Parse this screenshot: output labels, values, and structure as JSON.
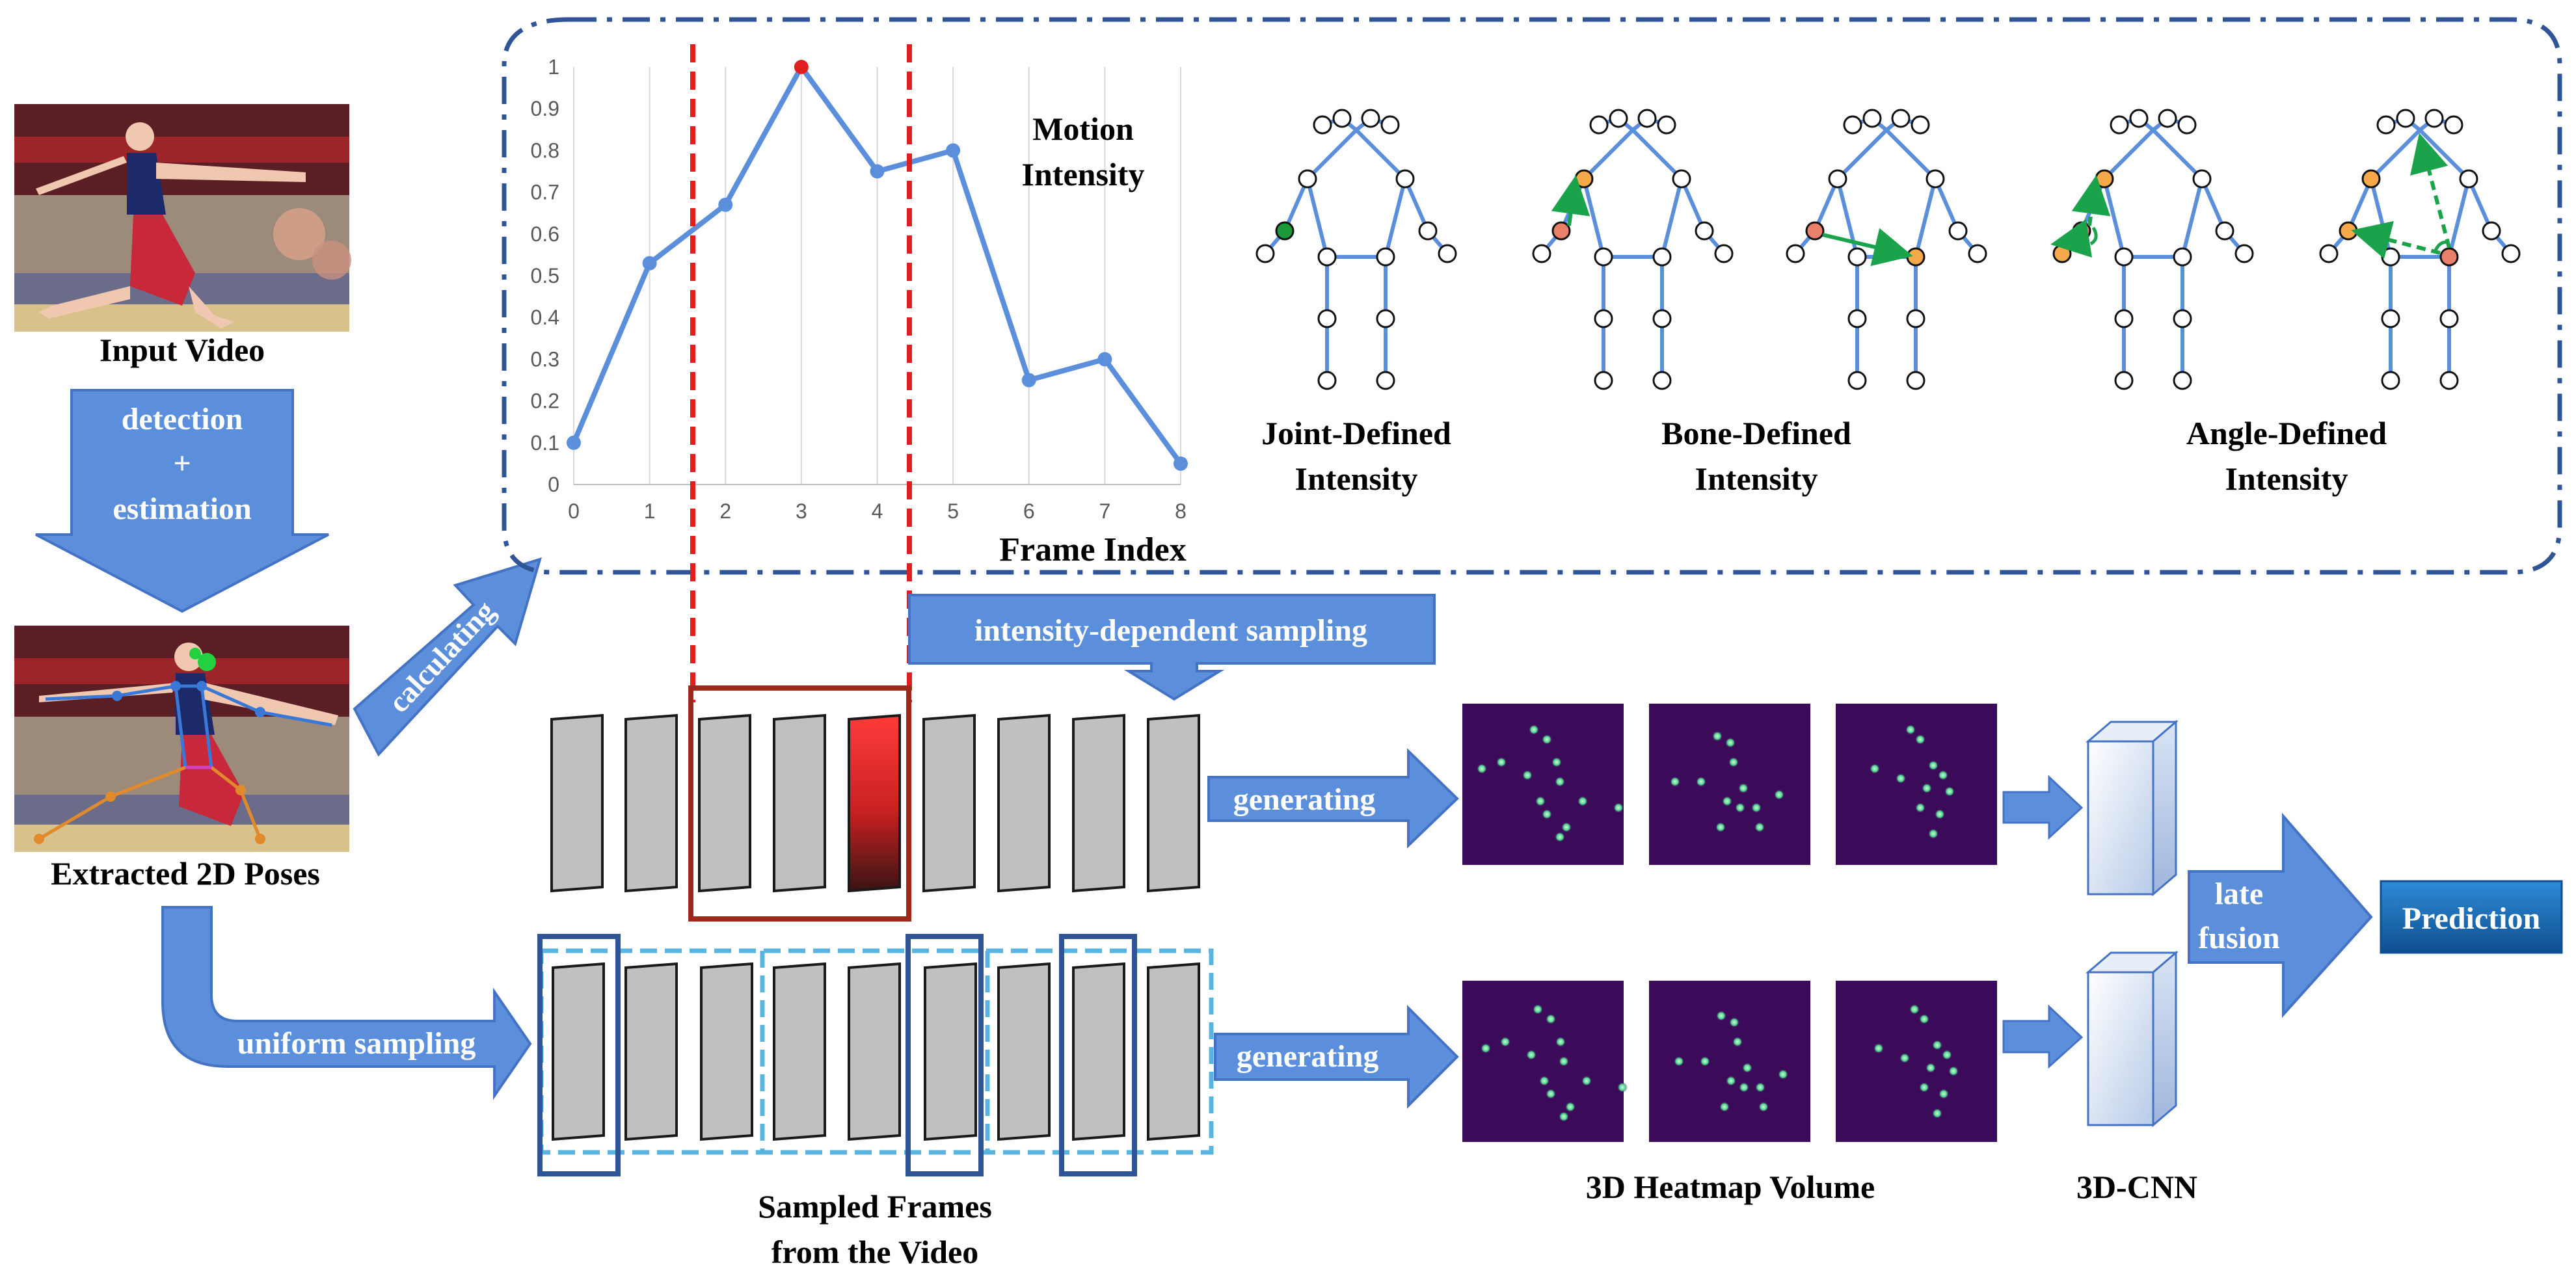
{
  "labels": {
    "input_video": "Input Video",
    "detection_line1": "detection",
    "detection_line2": "+",
    "detection_line3": "estimation",
    "extracted_poses": "Extracted 2D Poses",
    "calculating": "calculating",
    "uniform_sampling": "uniform sampling",
    "intensity_sampling": "intensity-dependent sampling",
    "generating_top": "generating",
    "generating_bottom": "generating",
    "sampled_frames_line1": "Sampled Frames",
    "sampled_frames_line2": "from the Video",
    "heatmap_volume": "3D Heatmap Volume",
    "cnn": "3D-CNN",
    "late_fusion_line1": "late",
    "late_fusion_line2": "fusion",
    "prediction": "Prediction",
    "joint_line1": "Joint-Defined",
    "joint_line2": "Intensity",
    "bone_line1": "Bone-Defined",
    "bone_line2": "Intensity",
    "angle_line1": "Angle-Defined",
    "angle_line2": "Intensity"
  },
  "chart_data": {
    "type": "line",
    "title_line1": "Motion",
    "title_line2": "Intensity",
    "xlabel": "Frame Index",
    "x": [
      0,
      1,
      2,
      3,
      4,
      5,
      6,
      7,
      8
    ],
    "y_ticks": [
      "0",
      "0.1",
      "0.2",
      "0.3",
      "0.4",
      "0.5",
      "0.6",
      "0.7",
      "0.8",
      "0.9",
      "1"
    ],
    "ylim": [
      0,
      1
    ],
    "xlim": [
      0,
      8
    ],
    "grid": "vertical",
    "values": [
      0.1,
      0.53,
      0.67,
      1.0,
      0.75,
      0.8,
      0.25,
      0.3,
      0.05
    ],
    "peak_index": 3,
    "highlight_window": [
      1.65,
      4.45
    ],
    "colors": {
      "line": "#5b8fdc",
      "peak": "#e02020",
      "window": "#e02020"
    }
  },
  "colors": {
    "arrow_fill": "#5b8fdc",
    "arrow_stroke": "#4472c4",
    "dashed_box": "#2f5597",
    "frame_fill": "#c0c0c0",
    "heatmap_bg": "#3b0b5a",
    "prediction_bg": "#1f6fb5",
    "sample_box_dark": "#2f5597",
    "sample_box_light": "#5ab4e0",
    "highlight_box": "#9c2a1a"
  }
}
